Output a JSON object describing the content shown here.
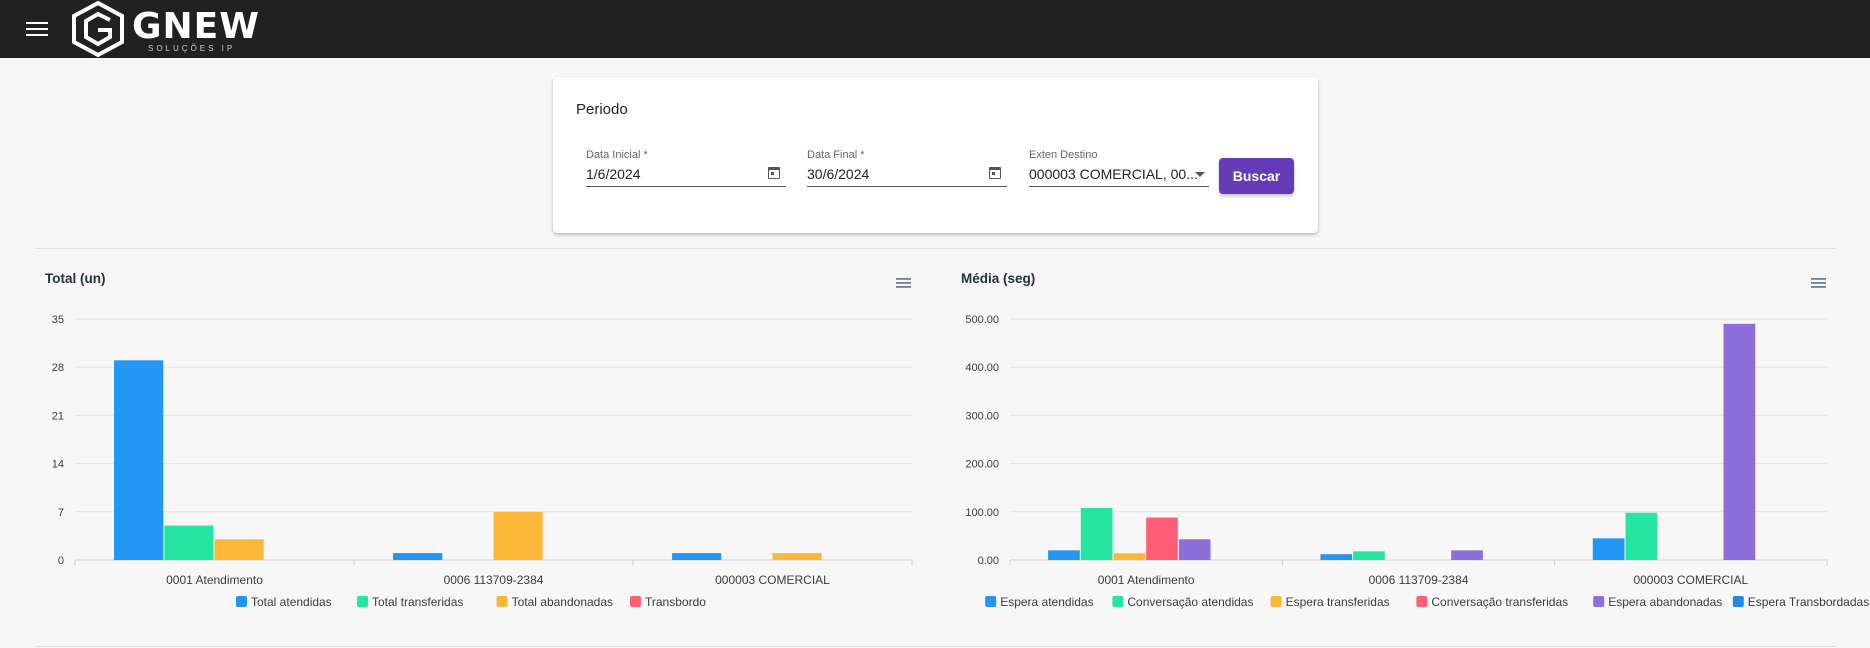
{
  "header": {
    "logo_text": "GNEW",
    "logo_subtitle": "SOLUÇÕES IP"
  },
  "filter": {
    "title": "Periodo",
    "start_label": "Data Inicial *",
    "start_value": "1/6/2024",
    "end_label": "Data Final *",
    "end_value": "30/6/2024",
    "ext_label": "Exten Destino",
    "ext_value": "000003 COMERCIAL, 00...",
    "search_label": "Buscar"
  },
  "chart_data": [
    {
      "type": "bar",
      "title": "Total (un)",
      "categories": [
        "0001 Atendimento",
        "0006 113709-2384",
        "000003 COMERCIAL"
      ],
      "yticks": [
        "0",
        "7",
        "14",
        "21",
        "28",
        "35"
      ],
      "ylim": [
        0,
        35
      ],
      "grid": true,
      "legend": "bottom",
      "series": [
        {
          "name": "Total atendidas",
          "color": "#2196f3",
          "values": [
            29,
            1,
            1
          ]
        },
        {
          "name": "Total transferidas",
          "color": "#26e5a0",
          "values": [
            5,
            0,
            0
          ]
        },
        {
          "name": "Total abandonadas",
          "color": "#fbb838",
          "values": [
            3,
            7,
            1
          ]
        },
        {
          "name": "Transbordo",
          "color": "#ff5e78",
          "values": [
            0,
            0,
            0
          ]
        }
      ]
    },
    {
      "type": "bar",
      "title": "Média (seg)",
      "categories": [
        "0001 Atendimento",
        "0006 113709-2384",
        "000003 COMERCIAL"
      ],
      "yticks": [
        "0.00",
        "100.00",
        "200.00",
        "300.00",
        "400.00",
        "500.00"
      ],
      "ylim": [
        0,
        500
      ],
      "grid": true,
      "legend": "bottom",
      "series": [
        {
          "name": "Espera atendidas",
          "color": "#2196f3",
          "values": [
            20,
            12,
            45
          ]
        },
        {
          "name": "Conversação atendidas",
          "color": "#26e5a0",
          "values": [
            108,
            18,
            98
          ]
        },
        {
          "name": "Espera transferidas",
          "color": "#fbb838",
          "values": [
            14,
            0,
            0
          ]
        },
        {
          "name": "Conversação transferidas",
          "color": "#ff5e78",
          "values": [
            88,
            0,
            0
          ]
        },
        {
          "name": "Espera abandonadas",
          "color": "#8d6fdc",
          "values": [
            43,
            20,
            490
          ]
        },
        {
          "name": "Espera Transbordadas",
          "color": "#1e88e5",
          "values": [
            0,
            0,
            0
          ]
        }
      ]
    }
  ]
}
